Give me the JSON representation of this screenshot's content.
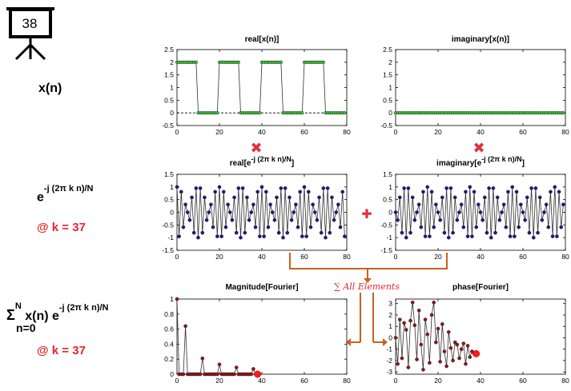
{
  "badge": {
    "number": "38"
  },
  "row_labels": {
    "xn": "x(n)",
    "exp_base": "e",
    "exp_sup": "-j (2π k n)/N",
    "k_label": "@ k = 37",
    "sum_sigma": "Σ",
    "sum_sup": "N",
    "sum_sub": "n=0",
    "sum_body": " x(n) e",
    "sum_body_sup": "-j (2π k n)/N",
    "k_label2": "@ k = 37"
  },
  "operators": {
    "multiply": "✖",
    "plus": "✚",
    "sum_all": "∑ All Elements"
  },
  "colors": {
    "green_marker": "#3fbf3f",
    "blue_marker": "#1a1a8c",
    "red_marker": "#8b1a1a",
    "highlight_red": "#ff1a1a",
    "orange_arrow": "#c8621a",
    "operator_red": "#e03040"
  },
  "chart_data": [
    {
      "id": "real_x",
      "type": "line",
      "title": "real[x(n)]",
      "x": [
        0,
        1,
        2,
        3,
        4,
        5,
        6,
        7,
        8,
        9,
        10,
        11,
        12,
        13,
        14,
        15,
        16,
        17,
        18,
        19,
        20,
        21,
        22,
        23,
        24,
        25,
        26,
        27,
        28,
        29,
        30,
        31,
        32,
        33,
        34,
        35,
        36,
        37,
        38,
        39,
        40,
        41,
        42,
        43,
        44,
        45,
        46,
        47,
        48,
        49,
        50,
        51,
        52,
        53,
        54,
        55,
        56,
        57,
        58,
        59,
        60,
        61,
        62,
        63,
        64,
        65,
        66,
        67,
        68,
        69,
        70,
        71,
        72,
        73,
        74,
        75,
        76,
        77,
        78,
        79
      ],
      "values": [
        2,
        2,
        2,
        2,
        2,
        2,
        2,
        2,
        2,
        2,
        0,
        0,
        0,
        0,
        0,
        0,
        0,
        0,
        0,
        0,
        2,
        2,
        2,
        2,
        2,
        2,
        2,
        2,
        2,
        2,
        0,
        0,
        0,
        0,
        0,
        0,
        0,
        0,
        0,
        0,
        2,
        2,
        2,
        2,
        2,
        2,
        2,
        2,
        2,
        2,
        0,
        0,
        0,
        0,
        0,
        0,
        0,
        0,
        0,
        0,
        2,
        2,
        2,
        2,
        2,
        2,
        2,
        2,
        2,
        2,
        0,
        0,
        0,
        0,
        0,
        0,
        0,
        0,
        0,
        0
      ],
      "xlim": [
        0,
        80
      ],
      "ylim": [
        -0.5,
        2.5
      ],
      "xticks": [
        0,
        20,
        40,
        60,
        80
      ],
      "yticks": [
        -0.5,
        0,
        0.5,
        1,
        1.5,
        2,
        2.5
      ],
      "marker": "green",
      "zero_line": true
    },
    {
      "id": "imag_x",
      "type": "line",
      "title": "imaginary[x(n)]",
      "x": [
        0,
        1,
        2,
        3,
        4,
        5,
        6,
        7,
        8,
        9,
        10,
        11,
        12,
        13,
        14,
        15,
        16,
        17,
        18,
        19,
        20,
        21,
        22,
        23,
        24,
        25,
        26,
        27,
        28,
        29,
        30,
        31,
        32,
        33,
        34,
        35,
        36,
        37,
        38,
        39,
        40,
        41,
        42,
        43,
        44,
        45,
        46,
        47,
        48,
        49,
        50,
        51,
        52,
        53,
        54,
        55,
        56,
        57,
        58,
        59,
        60,
        61,
        62,
        63,
        64,
        65,
        66,
        67,
        68,
        69,
        70,
        71,
        72,
        73,
        74,
        75,
        76,
        77,
        78,
        79
      ],
      "values": [
        0,
        0,
        0,
        0,
        0,
        0,
        0,
        0,
        0,
        0,
        0,
        0,
        0,
        0,
        0,
        0,
        0,
        0,
        0,
        0,
        0,
        0,
        0,
        0,
        0,
        0,
        0,
        0,
        0,
        0,
        0,
        0,
        0,
        0,
        0,
        0,
        0,
        0,
        0,
        0,
        0,
        0,
        0,
        0,
        0,
        0,
        0,
        0,
        0,
        0,
        0,
        0,
        0,
        0,
        0,
        0,
        0,
        0,
        0,
        0,
        0,
        0,
        0,
        0,
        0,
        0,
        0,
        0,
        0,
        0,
        0,
        0,
        0,
        0,
        0,
        0,
        0,
        0,
        0,
        0
      ],
      "xlim": [
        0,
        80
      ],
      "ylim": [
        -0.5,
        2.5
      ],
      "xticks": [
        0,
        20,
        40,
        60,
        80
      ],
      "yticks": [
        -0.5,
        0,
        0.5,
        1,
        1.5,
        2,
        2.5
      ],
      "marker": "green",
      "zero_line": true
    },
    {
      "id": "real_exp",
      "type": "line",
      "title": "real[e",
      "title_sup": "-j (2π k n)/N",
      "title_end": "]",
      "x": [
        0,
        1,
        2,
        3,
        4,
        5,
        6,
        7,
        8,
        9,
        10,
        11,
        12,
        13,
        14,
        15,
        16,
        17,
        18,
        19,
        20,
        21,
        22,
        23,
        24,
        25,
        26,
        27,
        28,
        29,
        30,
        31,
        32,
        33,
        34,
        35,
        36,
        37,
        38,
        39,
        40,
        41,
        42,
        43,
        44,
        45,
        46,
        47,
        48,
        49,
        50,
        51,
        52,
        53,
        54,
        55,
        56,
        57,
        58,
        59,
        60,
        61,
        62,
        63,
        64,
        65,
        66,
        67,
        68,
        69,
        70,
        71,
        72,
        73,
        74,
        75,
        76,
        77,
        78,
        79
      ],
      "values": [
        1,
        -0.951,
        0.809,
        -0.588,
        0.309,
        0,
        -0.309,
        0.588,
        -0.809,
        0.951,
        -1,
        0.951,
        -0.809,
        0.588,
        -0.309,
        0,
        0.309,
        -0.588,
        0.809,
        -0.951,
        1,
        -0.951,
        0.809,
        -0.588,
        0.309,
        0,
        -0.309,
        0.588,
        -0.809,
        0.951,
        -1,
        0.951,
        -0.809,
        0.588,
        -0.309,
        0,
        0.309,
        -0.588,
        0.809,
        -0.951,
        1,
        -0.951,
        0.809,
        -0.588,
        0.309,
        0,
        -0.309,
        0.588,
        -0.809,
        0.951,
        -1,
        0.951,
        -0.809,
        0.588,
        -0.309,
        0,
        0.309,
        -0.588,
        0.809,
        -0.951,
        1,
        -0.951,
        0.809,
        -0.588,
        0.309,
        0,
        -0.309,
        0.588,
        -0.809,
        0.951,
        -1,
        0.951,
        -0.809,
        0.588,
        -0.309,
        0,
        0.309,
        -0.588,
        0.809,
        -0.951
      ],
      "xlim": [
        0,
        80
      ],
      "ylim": [
        -1.5,
        1.5
      ],
      "xticks": [
        0,
        20,
        40,
        60,
        80
      ],
      "yticks": [
        -1.5,
        -1,
        -0.5,
        0,
        0.5,
        1,
        1.5
      ],
      "marker": "blue",
      "zero_line": false
    },
    {
      "id": "imag_exp",
      "type": "line",
      "title": "imaginary[e",
      "title_sup": "-j (2π k n)/N",
      "title_end": "]",
      "x": [
        0,
        1,
        2,
        3,
        4,
        5,
        6,
        7,
        8,
        9,
        10,
        11,
        12,
        13,
        14,
        15,
        16,
        17,
        18,
        19,
        20,
        21,
        22,
        23,
        24,
        25,
        26,
        27,
        28,
        29,
        30,
        31,
        32,
        33,
        34,
        35,
        36,
        37,
        38,
        39,
        40,
        41,
        42,
        43,
        44,
        45,
        46,
        47,
        48,
        49,
        50,
        51,
        52,
        53,
        54,
        55,
        56,
        57,
        58,
        59,
        60,
        61,
        62,
        63,
        64,
        65,
        66,
        67,
        68,
        69,
        70,
        71,
        72,
        73,
        74,
        75,
        76,
        77,
        78,
        79
      ],
      "values": [
        0,
        -0.309,
        0.588,
        -0.809,
        0.951,
        -1,
        0.951,
        -0.809,
        0.588,
        -0.309,
        0,
        0.309,
        -0.588,
        0.809,
        -0.951,
        1,
        -0.951,
        0.809,
        -0.588,
        0.309,
        0,
        -0.309,
        0.588,
        -0.809,
        0.951,
        -1,
        0.951,
        -0.809,
        0.588,
        -0.309,
        0,
        0.309,
        -0.588,
        0.809,
        -0.951,
        1,
        -0.951,
        0.809,
        -0.588,
        0.309,
        0,
        -0.309,
        0.588,
        -0.809,
        0.951,
        -1,
        0.951,
        -0.809,
        0.588,
        -0.309,
        0,
        0.309,
        -0.588,
        0.809,
        -0.951,
        1,
        -0.951,
        0.809,
        -0.588,
        0.309,
        0,
        -0.309,
        0.588,
        -0.809,
        0.951,
        -1,
        0.951,
        -0.809,
        0.588,
        -0.309,
        0,
        0.309,
        -0.588,
        0.809,
        -0.951,
        1,
        -0.951,
        0.809,
        -0.588,
        0.309
      ],
      "xlim": [
        0,
        80
      ],
      "ylim": [
        -1.5,
        1.5
      ],
      "xticks": [
        0,
        20,
        40,
        60,
        80
      ],
      "yticks": [
        -1.5,
        -1,
        -0.5,
        0,
        0.5,
        1,
        1.5
      ],
      "marker": "blue",
      "zero_line": false
    },
    {
      "id": "mag_fourier",
      "type": "line",
      "title": "Magnitude[Fourier]",
      "x": [
        0,
        1,
        2,
        3,
        4,
        5,
        6,
        7,
        8,
        9,
        10,
        11,
        12,
        13,
        14,
        15,
        16,
        17,
        18,
        19,
        20,
        21,
        22,
        23,
        24,
        25,
        26,
        27,
        28,
        29,
        30,
        31,
        32,
        33,
        34,
        35,
        36,
        37,
        38
      ],
      "values": [
        1,
        0,
        0,
        0,
        0.64,
        0,
        0,
        0,
        0,
        0,
        0,
        0,
        0.21,
        0,
        0,
        0,
        0,
        0,
        0,
        0,
        0.13,
        0,
        0,
        0,
        0,
        0,
        0,
        0,
        0.09,
        0,
        0,
        0,
        0,
        0,
        0,
        0,
        0.07,
        0,
        0
      ],
      "xlim": [
        0,
        80
      ],
      "ylim": [
        0,
        1
      ],
      "xticks": [
        0,
        20,
        40,
        60,
        80
      ],
      "yticks": [
        0,
        0.2,
        0.4,
        0.6,
        0.8,
        1
      ],
      "marker": "red",
      "highlight_last": true,
      "zero_line": false
    },
    {
      "id": "phase_fourier",
      "type": "line",
      "title": "phase[Fourier]",
      "x": [
        0,
        1,
        2,
        3,
        4,
        5,
        6,
        7,
        8,
        9,
        10,
        11,
        12,
        13,
        14,
        15,
        16,
        17,
        18,
        19,
        20,
        21,
        22,
        23,
        24,
        25,
        26,
        27,
        28,
        29,
        30,
        31,
        32,
        33,
        34,
        35,
        36,
        37,
        38
      ],
      "values": [
        0,
        -2.3,
        1.6,
        -1.8,
        1.3,
        0.7,
        -2.6,
        1.5,
        3.1,
        1.1,
        -1.9,
        2.4,
        -0.6,
        -2.8,
        1.6,
        0.3,
        -2.2,
        2.0,
        3.1,
        -0.4,
        0.8,
        -2.1,
        1.2,
        -1.2,
        -2.5,
        0.5,
        -0.9,
        -2.0,
        -0.4,
        -0.6,
        -1.8,
        -1.0,
        -0.5,
        -2.3,
        -0.7,
        -1.7,
        -1.2,
        -1.4,
        -1.4
      ],
      "xlim": [
        0,
        80
      ],
      "ylim": [
        -3.2,
        3.4
      ],
      "xticks": [
        0,
        20,
        40,
        60,
        80
      ],
      "yticks": [
        -3,
        -2,
        -1,
        0,
        1,
        2,
        3
      ],
      "marker": "red",
      "highlight_last": true,
      "zero_line": false
    }
  ]
}
